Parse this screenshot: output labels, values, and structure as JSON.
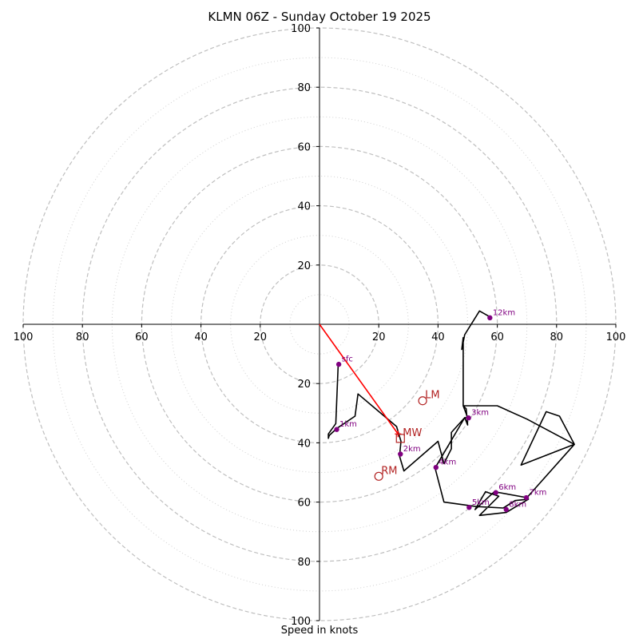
{
  "chart_data": {
    "type": "scatter",
    "title": "KLMN 06Z - Sunday October 19 2025",
    "xlabel": "Speed in knots",
    "xlim": [
      -100,
      100
    ],
    "ylim": [
      -100,
      100
    ],
    "rings_major": [
      20,
      40,
      60,
      80,
      100
    ],
    "rings_minor": [
      10,
      30,
      50,
      70,
      90
    ],
    "x_ticks": [
      "100",
      "80",
      "60",
      "40",
      "20",
      "20",
      "40",
      "60",
      "80",
      "100"
    ],
    "y_ticks": [
      "100",
      "80",
      "60",
      "40",
      "20",
      "20",
      "40",
      "60",
      "80",
      "100"
    ],
    "hodograph": [
      [
        6.3,
        -13.6
      ],
      [
        5.5,
        -33.5
      ],
      [
        3.0,
        -37.0
      ],
      [
        3.0,
        -38.5
      ],
      [
        3.3,
        -37.5
      ],
      [
        6.0,
        -35.0
      ],
      [
        12.0,
        -31.0
      ],
      [
        13.0,
        -23.5
      ],
      [
        26.0,
        -34.5
      ],
      [
        27.5,
        -39.5
      ],
      [
        27.0,
        -44.5
      ],
      [
        28.5,
        -49.5
      ],
      [
        40.0,
        -39.5
      ],
      [
        42.0,
        -47.0
      ],
      [
        44.5,
        -42.0
      ],
      [
        44.5,
        -36.5
      ],
      [
        49.0,
        -31.5
      ],
      [
        50.0,
        -34.0
      ],
      [
        49.5,
        -28.5
      ],
      [
        48.5,
        -27.5
      ],
      [
        60.0,
        -27.5
      ],
      [
        70.0,
        -32.0
      ],
      [
        86.0,
        -40.5
      ],
      [
        81.0,
        -31.0
      ],
      [
        76.5,
        -29.5
      ],
      [
        68.0,
        -47.5
      ],
      [
        86.0,
        -40.5
      ],
      [
        70.0,
        -58.5
      ],
      [
        59.0,
        -56.5
      ],
      [
        52.5,
        -62.5
      ],
      [
        56.0,
        -56.5
      ],
      [
        60.5,
        -58.0
      ],
      [
        54.0,
        -64.5
      ],
      [
        63.0,
        -63.5
      ],
      [
        70.5,
        -59.0
      ],
      [
        66.0,
        -59.5
      ],
      [
        62.0,
        -62.0
      ],
      [
        53.0,
        -61.5
      ],
      [
        42.0,
        -60.0
      ],
      [
        39.0,
        -48.5
      ],
      [
        49.0,
        -31.5
      ],
      [
        50.0,
        -31.5
      ],
      [
        48.5,
        -27.5
      ],
      [
        48.5,
        -4.5
      ],
      [
        48.0,
        -8.5
      ],
      [
        49.0,
        -3.5
      ],
      [
        54.0,
        4.5
      ],
      [
        57.5,
        2.5
      ]
    ],
    "height_markers": [
      {
        "label": "sfc",
        "x": 6.5,
        "y": -13.5
      },
      {
        "label": "1km",
        "x": 5.8,
        "y": -35.5
      },
      {
        "label": "2km",
        "x": 27.3,
        "y": -43.8
      },
      {
        "label": "3km",
        "x": 50.3,
        "y": -31.6
      },
      {
        "label": "4km",
        "x": 39.3,
        "y": -48.3
      },
      {
        "label": "5km",
        "x": 50.5,
        "y": -61.8
      },
      {
        "label": "6km",
        "x": 59.5,
        "y": -56.8
      },
      {
        "label": "7km",
        "x": 69.8,
        "y": -58.5
      },
      {
        "label": "8km",
        "x": 63.0,
        "y": -62.5
      },
      {
        "label": "12km",
        "x": 57.5,
        "y": 2.2
      }
    ],
    "storm_motion": [
      {
        "label": "LM",
        "marker": "circle",
        "x": 34.8,
        "y": -25.8
      },
      {
        "label": "MW",
        "marker": "square",
        "x": 27.3,
        "y": -38.5
      },
      {
        "label": "RM",
        "marker": "circle",
        "x": 20.0,
        "y": -51.3
      }
    ],
    "shear_vector": {
      "from": [
        0,
        0
      ],
      "to": [
        26.5,
        -37.0
      ]
    },
    "colors": {
      "hodograph": "#000000",
      "markers": "#800080",
      "storm_motion": "#b22222",
      "shear": "#ff0000",
      "grid": "#bfbfbf"
    }
  }
}
